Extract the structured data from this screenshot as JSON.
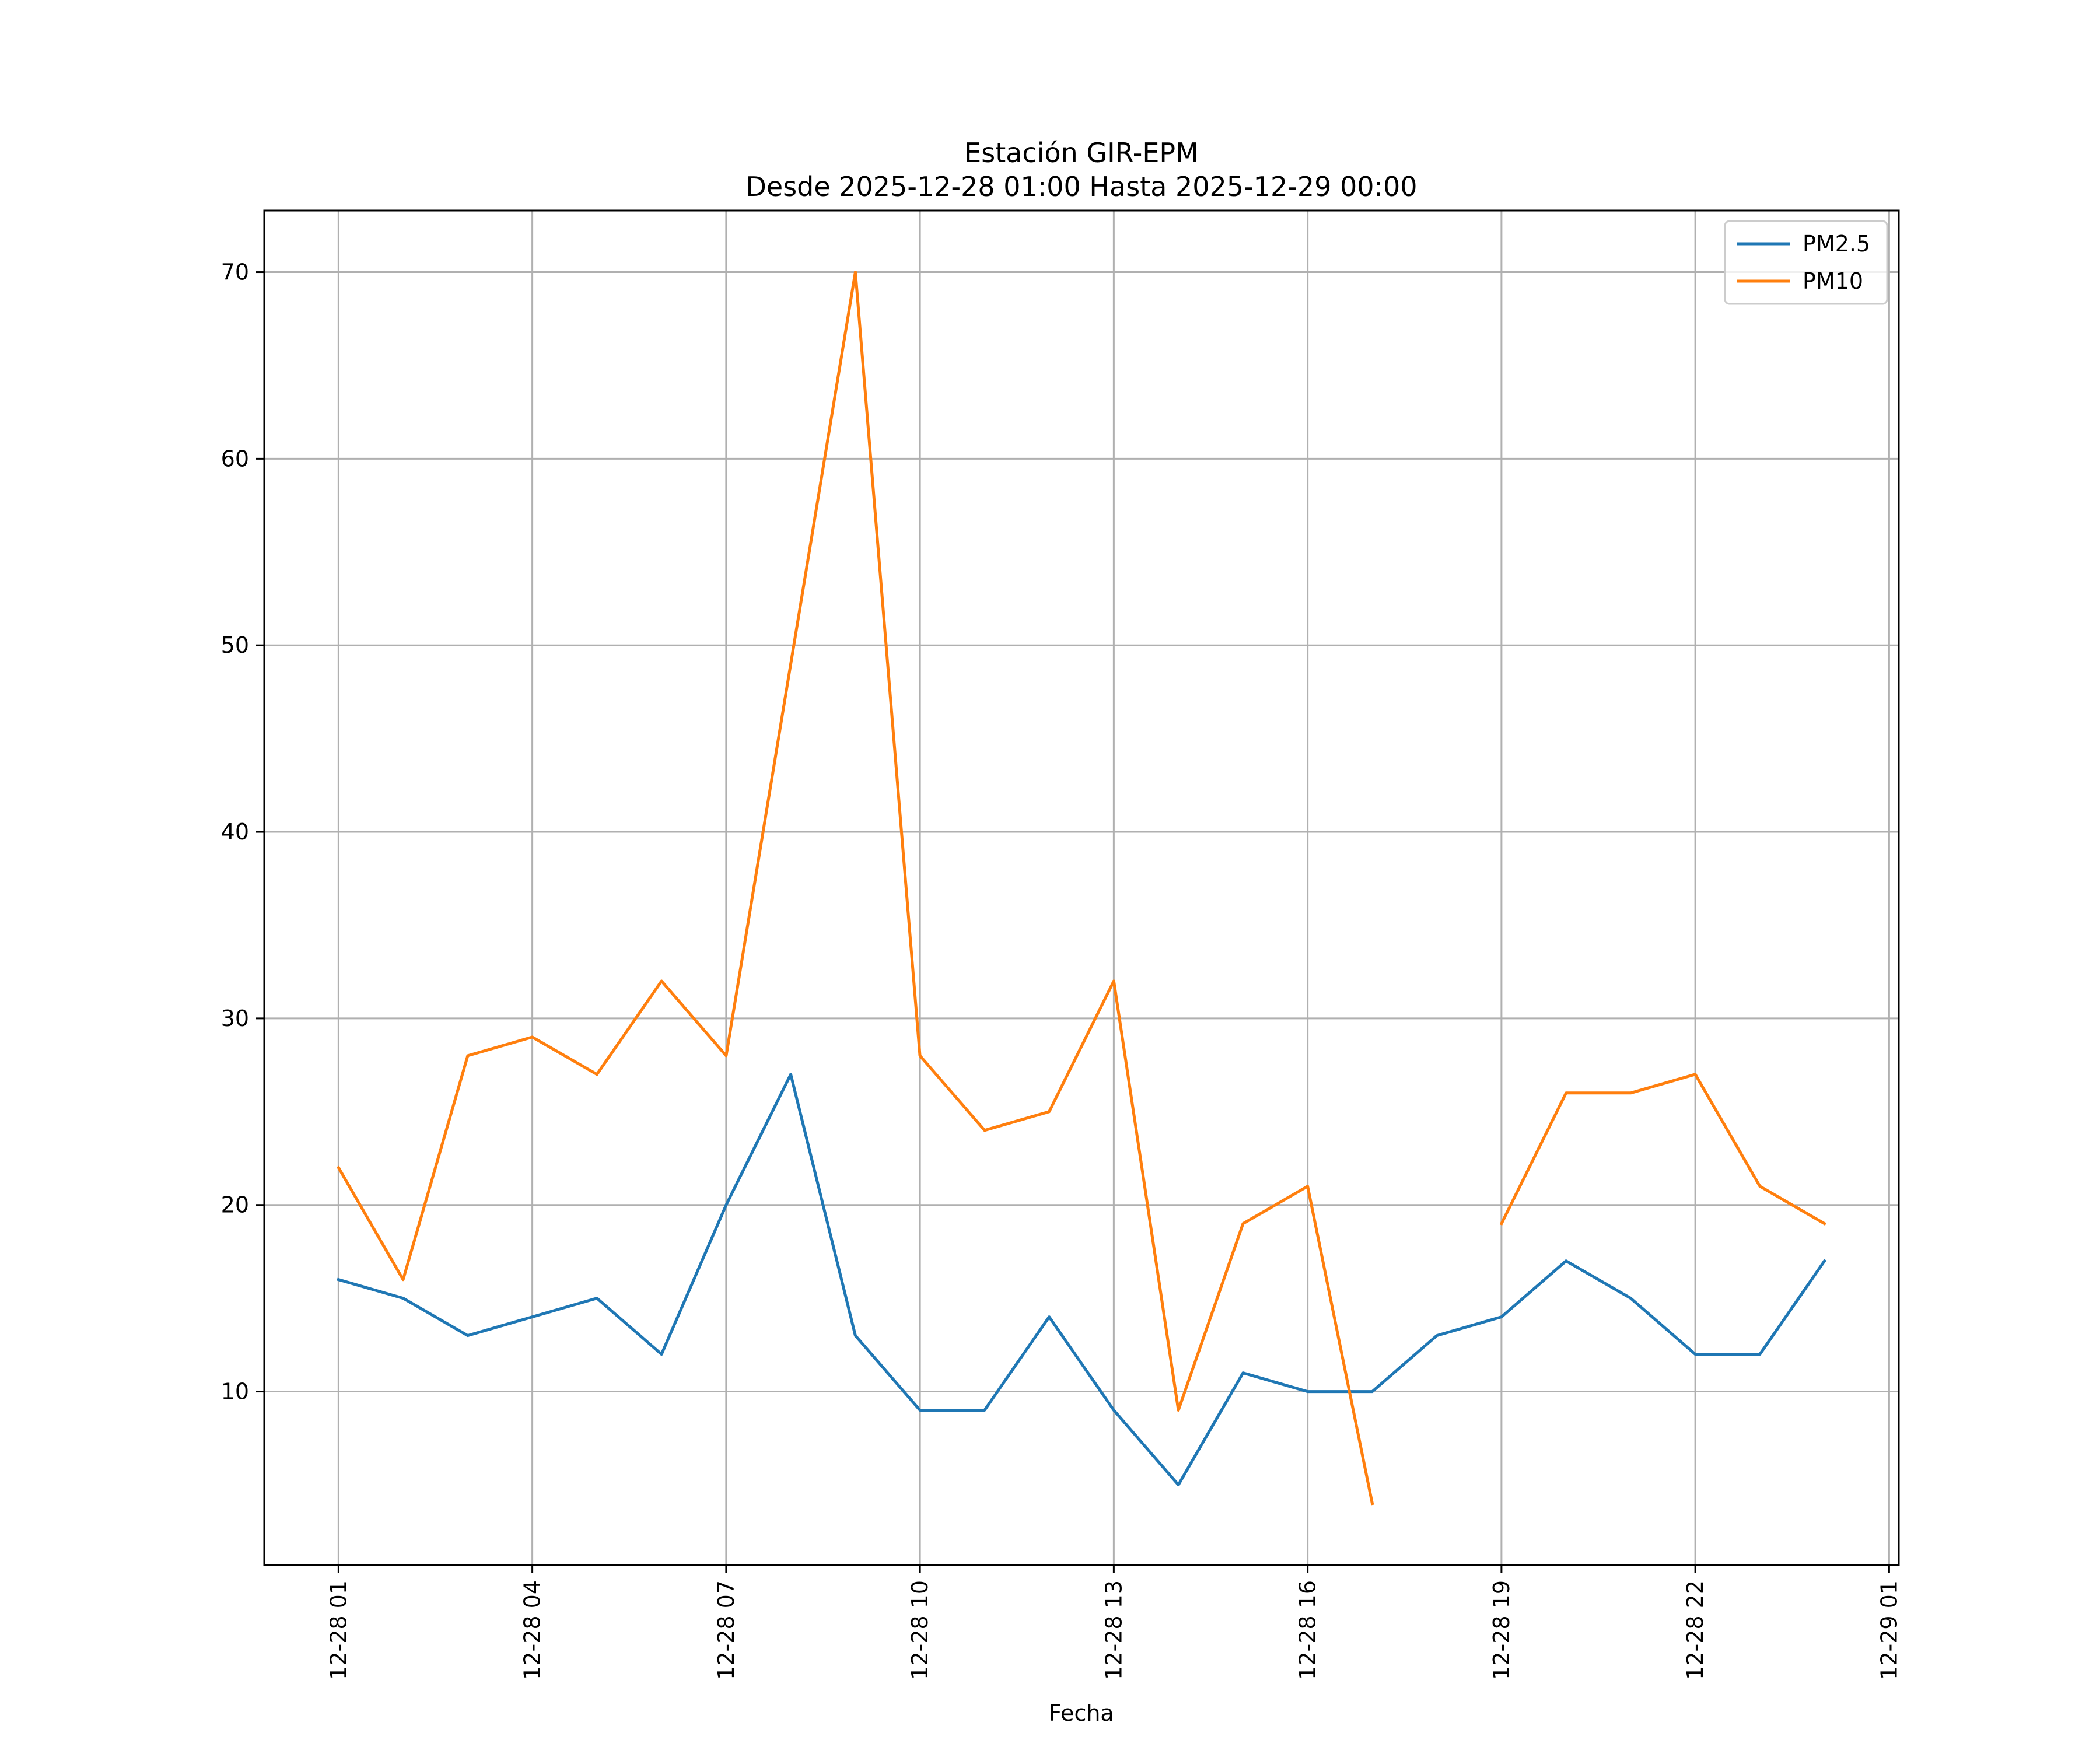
{
  "chart_data": {
    "type": "line",
    "title": "Estación GIR-EPM",
    "subtitle": "Desde 2025-12-28 01:00 Hasta 2025-12-29 00:00",
    "xlabel": "Fecha",
    "ylabel": "",
    "x_unit": "hours since 2025-12-28 00:00",
    "xlim": [
      -0.15,
      25.15
    ],
    "ylim": [
      0.7,
      73.3
    ],
    "grid": true,
    "legend_position": "upper-right",
    "x_ticks": [
      {
        "value": 1,
        "label": "12-28 01"
      },
      {
        "value": 4,
        "label": "12-28 04"
      },
      {
        "value": 7,
        "label": "12-28 07"
      },
      {
        "value": 10,
        "label": "12-28 10"
      },
      {
        "value": 13,
        "label": "12-28 13"
      },
      {
        "value": 16,
        "label": "12-28 16"
      },
      {
        "value": 19,
        "label": "12-28 19"
      },
      {
        "value": 22,
        "label": "12-28 22"
      },
      {
        "value": 25,
        "label": "12-29 01"
      }
    ],
    "y_ticks": [
      {
        "value": 10,
        "label": "10"
      },
      {
        "value": 20,
        "label": "20"
      },
      {
        "value": 30,
        "label": "30"
      },
      {
        "value": 40,
        "label": "40"
      },
      {
        "value": 50,
        "label": "50"
      },
      {
        "value": 60,
        "label": "60"
      },
      {
        "value": 70,
        "label": "70"
      }
    ],
    "x": [
      1,
      2,
      3,
      4,
      5,
      6,
      7,
      8,
      9,
      10,
      11,
      12,
      13,
      14,
      15,
      16,
      17,
      18,
      19,
      20,
      21,
      22,
      23,
      24
    ],
    "series": [
      {
        "name": "PM2.5",
        "color": "#1f77b4",
        "values": [
          16,
          15,
          13,
          14,
          15,
          12,
          20,
          27,
          13,
          9,
          9,
          14,
          9,
          5,
          11,
          10,
          10,
          13,
          14,
          17,
          15,
          12,
          12,
          17
        ]
      },
      {
        "name": "PM10",
        "color": "#ff7f0e",
        "values": [
          22,
          16,
          28,
          29,
          27,
          32,
          28,
          49,
          70,
          28,
          24,
          25,
          32,
          9,
          19,
          21,
          4,
          null,
          19,
          26,
          26,
          27,
          21,
          19
        ]
      }
    ]
  }
}
